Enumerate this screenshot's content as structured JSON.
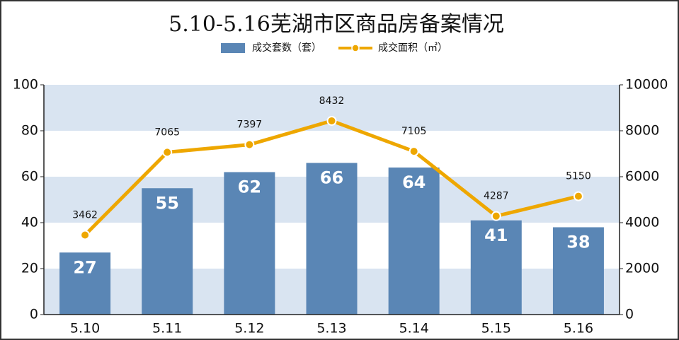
{
  "chart_data": {
    "type": "bar",
    "title": "5.10-5.16芜湖市区商品房备案情况",
    "categories": [
      "5.10",
      "5.11",
      "5.12",
      "5.13",
      "5.14",
      "5.15",
      "5.16"
    ],
    "series": [
      {
        "name": "成交套数（套）",
        "color": "#5a86b5",
        "values": [
          27,
          55,
          62,
          66,
          64,
          41,
          38
        ]
      },
      {
        "name": "成交面积（㎡）",
        "type": "line",
        "axis": "y2",
        "color": "#eea700",
        "values": [
          3462,
          7065,
          7397,
          8432,
          7105,
          4287,
          5150
        ]
      }
    ],
    "ylim": [
      0,
      100
    ],
    "yticks": [
      0,
      20,
      40,
      60,
      80,
      100
    ],
    "y2lim": [
      0,
      10000
    ],
    "y2ticks": [
      0,
      2000,
      4000,
      6000,
      8000,
      10000
    ],
    "grid": true
  }
}
